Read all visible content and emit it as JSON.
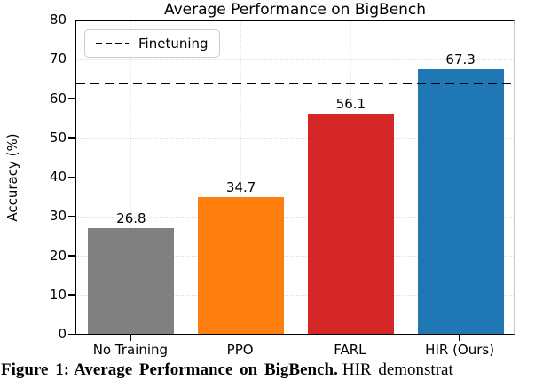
{
  "figure": {
    "caption": {
      "label": "Figure 1:",
      "bold_text": "Average Performance on BigBench.",
      "rest_text": "HIR demonstrat"
    }
  },
  "chart_data": {
    "type": "bar",
    "title": "Average Performance on BigBench",
    "xlabel": "",
    "ylabel": "Accuracy (%)",
    "categories": [
      "No Training",
      "PPO",
      "FARL",
      "HIR (Ours)"
    ],
    "values": [
      26.8,
      34.7,
      56.1,
      67.3
    ],
    "value_labels": [
      "26.8",
      "34.7",
      "56.1",
      "67.3"
    ],
    "bar_colors": [
      "#808080",
      "#ff7f0e",
      "#d62728",
      "#1f77b4"
    ],
    "ylim": [
      0,
      80
    ],
    "yticks": [
      0,
      10,
      20,
      30,
      40,
      50,
      60,
      70,
      80
    ],
    "grid": true,
    "grid_style": "dotted",
    "legend_position": "upper left",
    "reference_line": {
      "label": "Finetuning",
      "value": 64.2,
      "style": "dashed",
      "color": "#000000"
    }
  }
}
